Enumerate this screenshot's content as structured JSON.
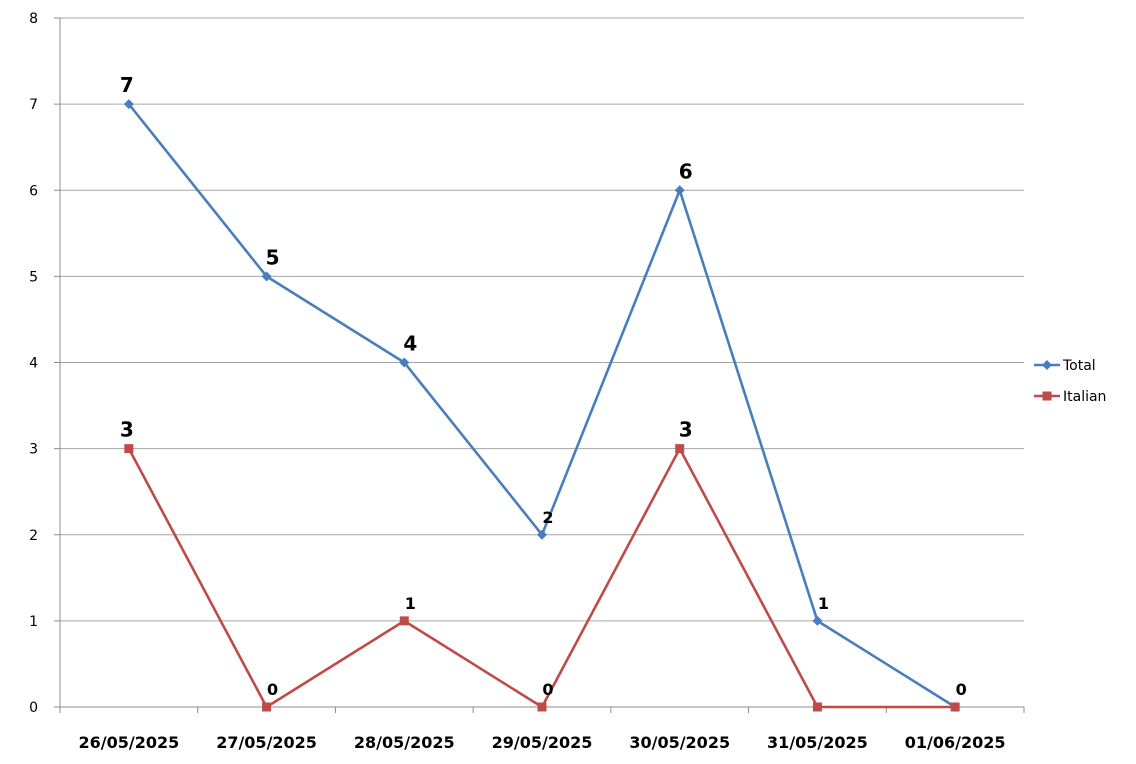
{
  "chart_data": {
    "type": "line",
    "title": "",
    "xlabel": "",
    "ylabel": "",
    "categories": [
      "26/05/2025",
      "27/05/2025",
      "28/05/2025",
      "29/05/2025",
      "30/05/2025",
      "31/05/2025",
      "01/06/2025"
    ],
    "ylim": [
      0,
      8
    ],
    "yticks": [
      0,
      1,
      2,
      3,
      4,
      5,
      6,
      7,
      8
    ],
    "grid": "horizontal",
    "legend_position": "right",
    "series": [
      {
        "name": "Total",
        "color": "#4a7ebb",
        "marker": "diamond",
        "values": [
          7,
          5,
          4,
          2,
          6,
          1,
          0
        ]
      },
      {
        "name": "Italian",
        "color": "#be4b48",
        "marker": "square",
        "values": [
          3,
          0,
          1,
          0,
          3,
          0,
          0
        ]
      }
    ],
    "data_labels": [
      {
        "series": "Total",
        "labels": [
          "7",
          "5",
          "4",
          "2",
          "6",
          "1",
          "0"
        ]
      },
      {
        "series": "Italian",
        "labels": [
          "3",
          "0",
          "1",
          "0",
          "3",
          "",
          ""
        ]
      }
    ]
  }
}
